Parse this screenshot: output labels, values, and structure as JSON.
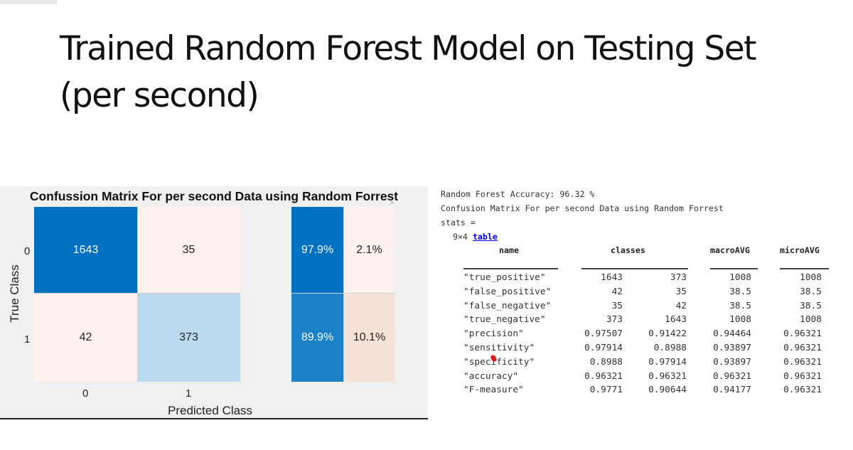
{
  "slide": {
    "title_line1": "Trained Random Forest Model on Testing Set",
    "title_line2": "(per second)"
  },
  "confusion_matrix": {
    "title": "Confussion Matrix For per second Data using Random Forrest",
    "ylabel": "True Class",
    "xlabel": "Predicted Class",
    "row_ticks": [
      "0",
      "1"
    ],
    "col_ticks": [
      "0",
      "1"
    ],
    "cells": [
      [
        "1643",
        "35"
      ],
      [
        "42",
        "373"
      ]
    ],
    "row_summary": [
      [
        "97.9%",
        "2.1%"
      ],
      [
        "89.9%",
        "10.1%"
      ]
    ],
    "colors": {
      "dark_blue": "#0070c0",
      "mid_blue": "#1b80c6",
      "light_blue": "#bcdaed",
      "light_pink": "#fcf1ed",
      "pink": "#f7e2d8",
      "panel_bg": "#f0f0f0"
    }
  },
  "console": {
    "accuracy_line": "Random Forest Accuracy: 96.32 %",
    "matrix_line": "Confusion Matrix For per second Data using Random Forrest",
    "stats_line": "stats =",
    "dims": "9×4",
    "table_link": "table"
  },
  "stats_table": {
    "headers": [
      "name",
      "classes",
      "macroAVG",
      "microAVG"
    ],
    "rows": [
      {
        "name": "\"true_positive\"",
        "c1": "1643",
        "c2": "373",
        "macro": "1008",
        "micro": "1008"
      },
      {
        "name": "\"false_positive\"",
        "c1": "42",
        "c2": "35",
        "macro": "38.5",
        "micro": "38.5"
      },
      {
        "name": "\"false_negative\"",
        "c1": "35",
        "c2": "42",
        "macro": "38.5",
        "micro": "38.5"
      },
      {
        "name": "\"true_negative\"",
        "c1": "373",
        "c2": "1643",
        "macro": "1008",
        "micro": "1008"
      },
      {
        "name": "\"precision\"",
        "c1": "0.97507",
        "c2": "0.91422",
        "macro": "0.94464",
        "micro": "0.96321"
      },
      {
        "name": "\"sensitivity\"",
        "c1": "0.97914",
        "c2": "0.8988",
        "macro": "0.93897",
        "micro": "0.96321"
      },
      {
        "name": "\"specificity\"",
        "c1": "0.8988",
        "c2": "0.97914",
        "macro": "0.93897",
        "micro": "0.96321"
      },
      {
        "name": "\"accuracy\"",
        "c1": "0.96321",
        "c2": "0.96321",
        "macro": "0.96321",
        "micro": "0.96321"
      },
      {
        "name": "\"F-measure\"",
        "c1": "0.9771",
        "c2": "0.90644",
        "macro": "0.94177",
        "micro": "0.96321"
      }
    ]
  }
}
